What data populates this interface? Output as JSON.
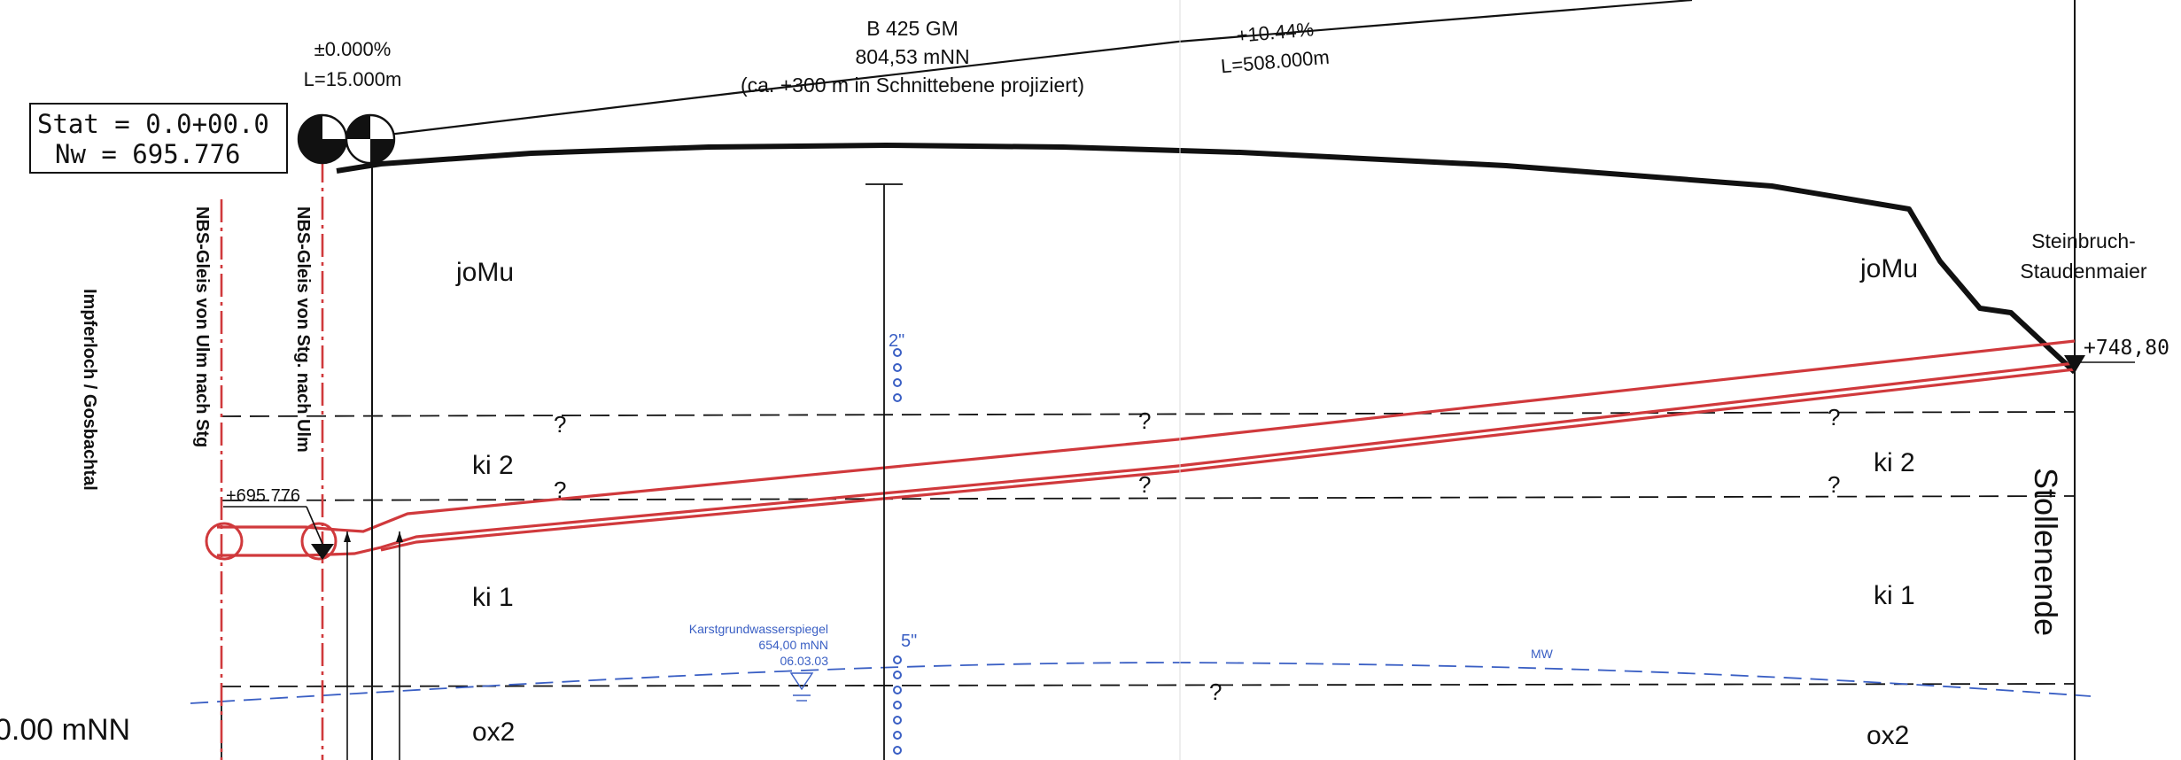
{
  "gradients": {
    "left_grade": "±0.000%",
    "left_length": "L=15.000m",
    "right_grade": "+10.44%",
    "right_length": "L=508.000m"
  },
  "road": {
    "name": "B 425 GM",
    "elevation": "804,53 mNN",
    "note": "(ca. +300 m  in Schnittebene projiziert)"
  },
  "station_box": {
    "stat": "Stat = 0.0+00.0",
    "nw": "Nw = 695.776"
  },
  "vertical_labels": {
    "valley": "Impferloch / Gosbachtal",
    "track_ulm_stg": "NBS-Gleis von Ulm nach Stg",
    "track_stg_ulm": "NBS-Gleis von Stg. nach Ulm",
    "tunnel_end": "Stollenende"
  },
  "quarry": {
    "line1": "Steinbruch-",
    "line2": "Staudenmaier"
  },
  "elevations": {
    "right_end": "+748,80",
    "left_start": "+695.776",
    "datum": "0.00 mNN"
  },
  "geology": {
    "joMu_left": "joMu",
    "joMu_right": "joMu",
    "ki2_left": "ki 2",
    "ki2_right": "ki 2",
    "ki1_left": "ki 1",
    "ki1_right": "ki 1",
    "ox2_left": "ox2",
    "ox2_right": "ox2",
    "uncertain": "?"
  },
  "borehole": {
    "upper_diameter": "2\"",
    "lower_diameter": "5\""
  },
  "groundwater": {
    "title": "Karstgrundwasserspiegel",
    "level": "654,00 mNN",
    "date": "06.03.03",
    "mean_label": "MW"
  },
  "colors": {
    "tunnel_red": "#d0393c",
    "water_blue": "#3a5fc4",
    "line_black": "#111111"
  }
}
